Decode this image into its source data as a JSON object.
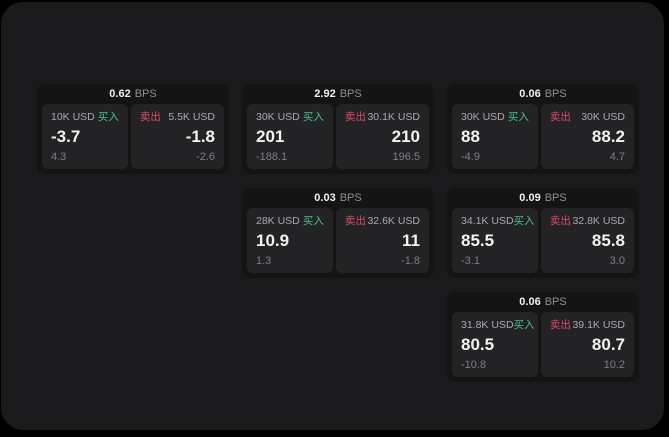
{
  "colors": {
    "page_bg": "#000000",
    "panel_bg": "#1a1a1c",
    "card_bg": "#141415",
    "tile_bg": "#232326",
    "buy_green": "#46c287",
    "sell_red": "#dc4a67",
    "primary_text": "#f2f2f3",
    "muted_text": "#8e8e94"
  },
  "labels": {
    "bps": "BPS",
    "buy": "买入",
    "sell": "卖出"
  },
  "cards": [
    {
      "bps": "0.62",
      "buy": {
        "amount": "10K USD",
        "price": "-3.7",
        "delta": "4.3"
      },
      "sell": {
        "amount": "5.5K USD",
        "price": "-1.8",
        "delta": "-2.6"
      }
    },
    {
      "bps": "2.92",
      "buy": {
        "amount": "30K USD",
        "price": "201",
        "delta": "-188.1"
      },
      "sell": {
        "amount": "30.1K USD",
        "price": "210",
        "delta": "196.5"
      }
    },
    {
      "bps": "0.06",
      "buy": {
        "amount": "30K USD",
        "price": "88",
        "delta": "-4.9"
      },
      "sell": {
        "amount": "30K USD",
        "price": "88.2",
        "delta": "4.7"
      }
    },
    {
      "bps": "0.03",
      "buy": {
        "amount": "28K USD",
        "price": "10.9",
        "delta": "1.3"
      },
      "sell": {
        "amount": "32.6K USD",
        "price": "11",
        "delta": "-1.8"
      }
    },
    {
      "bps": "0.09",
      "buy": {
        "amount": "34.1K USD",
        "price": "85.5",
        "delta": "-3.1"
      },
      "sell": {
        "amount": "32.8K USD",
        "price": "85.8",
        "delta": "3.0"
      }
    },
    {
      "bps": "0.06",
      "buy": {
        "amount": "31.8K USD",
        "price": "80.5",
        "delta": "-10.8"
      },
      "sell": {
        "amount": "39.1K USD",
        "price": "80.7",
        "delta": "10.2"
      }
    }
  ]
}
